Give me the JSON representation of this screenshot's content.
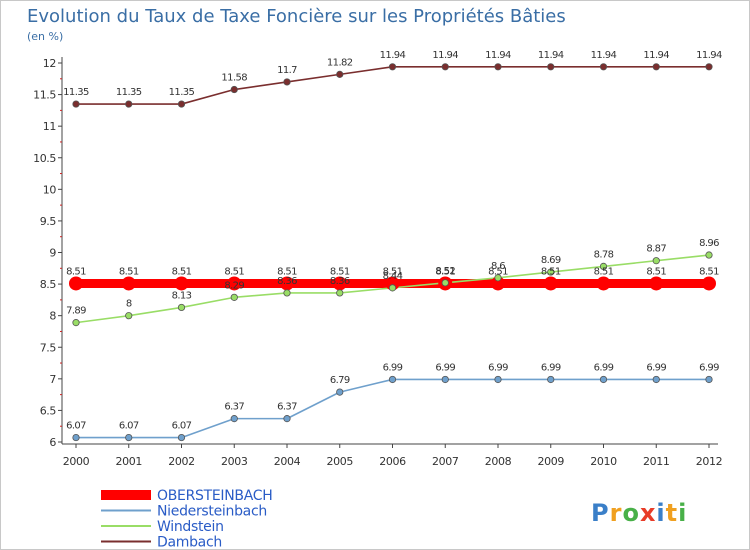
{
  "chart_data": {
    "type": "line",
    "title": "Evolution du Taux de Taxe Foncière sur les Propriétés Bâties",
    "subtitle": "(en %)",
    "x": [
      "2000",
      "2001",
      "2002",
      "2003",
      "2004",
      "2005",
      "2006",
      "2007",
      "2008",
      "2009",
      "2010",
      "2011",
      "2012"
    ],
    "ylim": [
      6,
      12
    ],
    "yticks": [
      "6",
      "6.5",
      "7",
      "7.5",
      "8",
      "8.5",
      "9",
      "9.5",
      "10",
      "10.5",
      "11",
      "11.5",
      "12"
    ],
    "grid": false,
    "legend_position": "bottom-left",
    "series": [
      {
        "name": "OBERSTEINBACH",
        "color": "#ff0000",
        "values": [
          8.51,
          8.51,
          8.51,
          8.51,
          8.51,
          8.51,
          8.51,
          8.51,
          8.51,
          8.51,
          8.51,
          8.51,
          8.51
        ],
        "labels": [
          "8.51",
          "8.51",
          "8.51",
          "8.51",
          "8.51",
          "8.51",
          "8.51",
          "8.51",
          "8.51",
          "8.51",
          "8.51",
          "8.51",
          "8.51"
        ]
      },
      {
        "name": "Niedersteinbach",
        "color": "#6fa0cc",
        "values": [
          6.07,
          6.07,
          6.07,
          6.37,
          6.37,
          6.79,
          6.99,
          6.99,
          6.99,
          6.99,
          6.99,
          6.99,
          6.99
        ],
        "labels": [
          "6.07",
          "6.07",
          "6.07",
          "6.37",
          "6.37",
          "6.79",
          "6.99",
          "6.99",
          "6.99",
          "6.99",
          "6.99",
          "6.99",
          "6.99"
        ]
      },
      {
        "name": "Windstein",
        "color": "#99dd66",
        "values": [
          7.89,
          8,
          8.13,
          8.29,
          8.36,
          8.36,
          8.44,
          8.52,
          8.6,
          8.69,
          8.78,
          8.87,
          8.96
        ],
        "labels": [
          "7.89",
          "8",
          "8.13",
          "8.29",
          "8.36",
          "8.36",
          "8.44",
          "8.52",
          "8.6",
          "8.69",
          "8.78",
          "8.87",
          "8.96"
        ]
      },
      {
        "name": "Dambach",
        "color": "#7a2e2e",
        "values": [
          11.35,
          11.35,
          11.35,
          11.58,
          11.7,
          11.82,
          11.94,
          11.94,
          11.94,
          11.94,
          11.94,
          11.94,
          11.94
        ],
        "labels": [
          "11.35",
          "11.35",
          "11.35",
          "11.58",
          "11.7",
          "11.82",
          "11.94",
          "11.94",
          "11.94",
          "11.94",
          "11.94",
          "11.94",
          "11.94"
        ]
      }
    ]
  },
  "logo": {
    "letters": [
      "P",
      "r",
      "o",
      "x",
      "i",
      "t",
      "i"
    ],
    "colors": [
      "#3a7fc8",
      "#f0a020",
      "#48b048",
      "#e83c28",
      "#3a7fc8",
      "#f0a020",
      "#48b048"
    ]
  }
}
